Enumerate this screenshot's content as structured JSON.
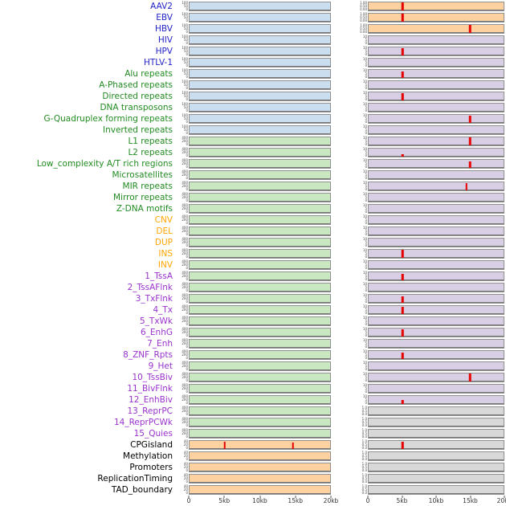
{
  "palette": {
    "label_colors": {
      "virus": "#2323C8",
      "repeat": "#228B22",
      "sv": "#FFA500",
      "state": "#9932CC",
      "other": "#000000"
    },
    "panel_fills": {
      "blue": "#CADEF0",
      "green": "#C9E8C2",
      "orange": "#FDD2A0",
      "purple": "#D9CFE4",
      "gray": "#D8D8D8"
    },
    "spike_color": "#E60000",
    "baseline_color": "#777777",
    "border_color": "#909090"
  },
  "ytick_defaults": {
    "blue": [
      "100",
      "50",
      "0"
    ],
    "green": [
      "400",
      "200",
      "0"
    ],
    "orange_left": [
      "40",
      "20",
      "0"
    ],
    "orange_right": [
      "1.00",
      "0.50",
      "0.00"
    ],
    "purple": [
      "10",
      "5",
      "0"
    ],
    "gray": [
      "1.0",
      "0.5",
      "0.0"
    ]
  },
  "chart_data": {
    "type": "area",
    "title": "",
    "description": "44 genomic feature density tracks in two panel columns; red spikes mark enriched positions",
    "x_axis": {
      "ticks": [
        "0",
        "5kb",
        "10kb",
        "15kb",
        "20kb"
      ],
      "range_kb": [
        0,
        20
      ]
    },
    "rows": [
      {
        "label": "AAV2",
        "category": "virus",
        "left_fill": "blue",
        "right_fill": "orange",
        "left_spikes": [],
        "right_spikes": [
          {
            "kb": 5,
            "h": 1.0
          }
        ]
      },
      {
        "label": "EBV",
        "category": "virus",
        "left_fill": "blue",
        "right_fill": "orange",
        "left_spikes": [],
        "right_spikes": [
          {
            "kb": 5,
            "h": 1.0
          }
        ]
      },
      {
        "label": "HBV",
        "category": "virus",
        "left_fill": "blue",
        "right_fill": "orange",
        "left_spikes": [],
        "right_spikes": [
          {
            "kb": 15,
            "h": 1.0
          }
        ]
      },
      {
        "label": "HIV",
        "category": "virus",
        "left_fill": "blue",
        "right_fill": "purple",
        "left_spikes": [],
        "right_spikes": []
      },
      {
        "label": "HPV",
        "category": "virus",
        "left_fill": "blue",
        "right_fill": "purple",
        "left_spikes": [],
        "right_spikes": [
          {
            "kb": 5,
            "h": 0.95
          }
        ]
      },
      {
        "label": "HTLV-1",
        "category": "virus",
        "left_fill": "blue",
        "right_fill": "purple",
        "left_spikes": [],
        "right_spikes": []
      },
      {
        "label": "Alu repeats",
        "category": "repeat",
        "left_fill": "blue",
        "right_fill": "purple",
        "left_spikes": [],
        "right_spikes": [
          {
            "kb": 5,
            "h": 0.85
          }
        ]
      },
      {
        "label": "A-Phased repeats",
        "category": "repeat",
        "left_fill": "blue",
        "right_fill": "purple",
        "left_spikes": [],
        "right_spikes": []
      },
      {
        "label": "Directed repeats",
        "category": "repeat",
        "left_fill": "blue",
        "right_fill": "purple",
        "left_spikes": [],
        "right_spikes": [
          {
            "kb": 5,
            "h": 0.9
          }
        ]
      },
      {
        "label": "DNA transposons",
        "category": "repeat",
        "left_fill": "blue",
        "right_fill": "purple",
        "left_spikes": [],
        "right_spikes": []
      },
      {
        "label": "G-Quadruplex forming repeats",
        "category": "repeat",
        "left_fill": "blue",
        "right_fill": "purple",
        "left_spikes": [],
        "right_spikes": [
          {
            "kb": 15,
            "h": 0.9
          }
        ]
      },
      {
        "label": "Inverted repeats",
        "category": "repeat",
        "left_fill": "blue",
        "right_fill": "purple",
        "left_spikes": [],
        "right_spikes": []
      },
      {
        "label": "L1 repeats",
        "category": "repeat",
        "left_fill": "green",
        "right_fill": "purple",
        "left_spikes": [],
        "right_spikes": [
          {
            "kb": 15,
            "h": 1.0
          }
        ]
      },
      {
        "label": "L2 repeats",
        "category": "repeat",
        "left_fill": "green",
        "right_fill": "purple",
        "left_spikes": [],
        "right_spikes": [
          {
            "kb": 5,
            "h": 0.35
          }
        ]
      },
      {
        "label": "Low_complexity A/T rich regions",
        "category": "repeat",
        "left_fill": "green",
        "right_fill": "purple",
        "left_spikes": [],
        "right_spikes": [
          {
            "kb": 15,
            "h": 0.8
          }
        ]
      },
      {
        "label": "Microsatellites",
        "category": "repeat",
        "left_fill": "green",
        "right_fill": "purple",
        "left_spikes": [],
        "right_spikes": []
      },
      {
        "label": "MIR repeats",
        "category": "repeat",
        "left_fill": "green",
        "right_fill": "purple",
        "left_spikes": [],
        "right_spikes": [
          {
            "kb": 14.5,
            "h": 0.9
          }
        ]
      },
      {
        "label": "Mirror repeats",
        "category": "repeat",
        "left_fill": "green",
        "right_fill": "purple",
        "left_spikes": [],
        "right_spikes": []
      },
      {
        "label": "Z-DNA motifs",
        "category": "repeat",
        "left_fill": "green",
        "right_fill": "purple",
        "left_spikes": [],
        "right_spikes": []
      },
      {
        "label": "CNV",
        "category": "sv",
        "left_fill": "green",
        "right_fill": "purple",
        "left_spikes": [],
        "right_spikes": []
      },
      {
        "label": "DEL",
        "category": "sv",
        "left_fill": "green",
        "right_fill": "purple",
        "left_spikes": [],
        "right_spikes": []
      },
      {
        "label": "DUP",
        "category": "sv",
        "left_fill": "green",
        "right_fill": "purple",
        "left_spikes": [],
        "right_spikes": []
      },
      {
        "label": "INS",
        "category": "sv",
        "left_fill": "green",
        "right_fill": "purple",
        "left_spikes": [],
        "right_spikes": [
          {
            "kb": 5,
            "h": 1.0
          }
        ]
      },
      {
        "label": "INV",
        "category": "sv",
        "left_fill": "green",
        "right_fill": "purple",
        "left_spikes": [],
        "right_spikes": []
      },
      {
        "label": "1_TssA",
        "category": "state",
        "left_fill": "green",
        "right_fill": "purple",
        "left_spikes": [],
        "right_spikes": [
          {
            "kb": 5,
            "h": 0.85
          }
        ]
      },
      {
        "label": "2_TssAFlnk",
        "category": "state",
        "left_fill": "green",
        "right_fill": "purple",
        "left_spikes": [],
        "right_spikes": []
      },
      {
        "label": "3_TxFlnk",
        "category": "state",
        "left_fill": "green",
        "right_fill": "purple",
        "left_spikes": [],
        "right_spikes": [
          {
            "kb": 5,
            "h": 0.8
          }
        ]
      },
      {
        "label": "4_Tx",
        "category": "state",
        "left_fill": "green",
        "right_fill": "purple",
        "left_spikes": [],
        "right_spikes": [
          {
            "kb": 5,
            "h": 0.95
          }
        ]
      },
      {
        "label": "5_TxWk",
        "category": "state",
        "left_fill": "green",
        "right_fill": "purple",
        "left_spikes": [],
        "right_spikes": []
      },
      {
        "label": "6_EnhG",
        "category": "state",
        "left_fill": "green",
        "right_fill": "purple",
        "left_spikes": [],
        "right_spikes": [
          {
            "kb": 5,
            "h": 0.9
          }
        ]
      },
      {
        "label": "7_Enh",
        "category": "state",
        "left_fill": "green",
        "right_fill": "purple",
        "left_spikes": [],
        "right_spikes": []
      },
      {
        "label": "8_ZNF_Rpts",
        "category": "state",
        "left_fill": "green",
        "right_fill": "purple",
        "left_spikes": [],
        "right_spikes": [
          {
            "kb": 5,
            "h": 0.85
          }
        ]
      },
      {
        "label": "9_Het",
        "category": "state",
        "left_fill": "green",
        "right_fill": "purple",
        "left_spikes": [],
        "right_spikes": []
      },
      {
        "label": "10_TssBiv",
        "category": "state",
        "left_fill": "green",
        "right_fill": "purple",
        "left_spikes": [],
        "right_spikes": [
          {
            "kb": 15,
            "h": 1.0
          }
        ]
      },
      {
        "label": "11_BivFlnk",
        "category": "state",
        "left_fill": "green",
        "right_fill": "purple",
        "left_spikes": [],
        "right_spikes": []
      },
      {
        "label": "12_EnhBiv",
        "category": "state",
        "left_fill": "green",
        "right_fill": "purple",
        "left_spikes": [],
        "right_spikes": [
          {
            "kb": 5,
            "h": 0.5
          }
        ]
      },
      {
        "label": "13_ReprPC",
        "category": "state",
        "left_fill": "green",
        "right_fill": "gray",
        "left_spikes": [],
        "right_spikes": []
      },
      {
        "label": "14_ReprPCWk",
        "category": "state",
        "left_fill": "green",
        "right_fill": "gray",
        "left_spikes": [],
        "right_spikes": []
      },
      {
        "label": "15_Quies",
        "category": "state",
        "left_fill": "green",
        "right_fill": "gray",
        "left_spikes": [],
        "right_spikes": []
      },
      {
        "label": "CPGisland",
        "category": "other",
        "left_fill": "orange",
        "right_fill": "gray",
        "left_spikes": [
          {
            "kb": 5,
            "h": 0.9
          },
          {
            "kb": 14.7,
            "h": 0.85
          }
        ],
        "right_spikes": [
          {
            "kb": 5,
            "h": 0.9
          }
        ]
      },
      {
        "label": "Methylation",
        "category": "other",
        "left_fill": "orange",
        "right_fill": "gray",
        "left_spikes": [],
        "right_spikes": []
      },
      {
        "label": "Promoters",
        "category": "other",
        "left_fill": "orange",
        "right_fill": "gray",
        "left_spikes": [],
        "right_spikes": []
      },
      {
        "label": "ReplicationTiming",
        "category": "other",
        "left_fill": "orange",
        "right_fill": "gray",
        "left_spikes": [],
        "right_spikes": []
      },
      {
        "label": "TAD_boundary",
        "category": "other",
        "left_fill": "orange",
        "right_fill": "gray",
        "left_spikes": [],
        "right_spikes": []
      }
    ]
  }
}
